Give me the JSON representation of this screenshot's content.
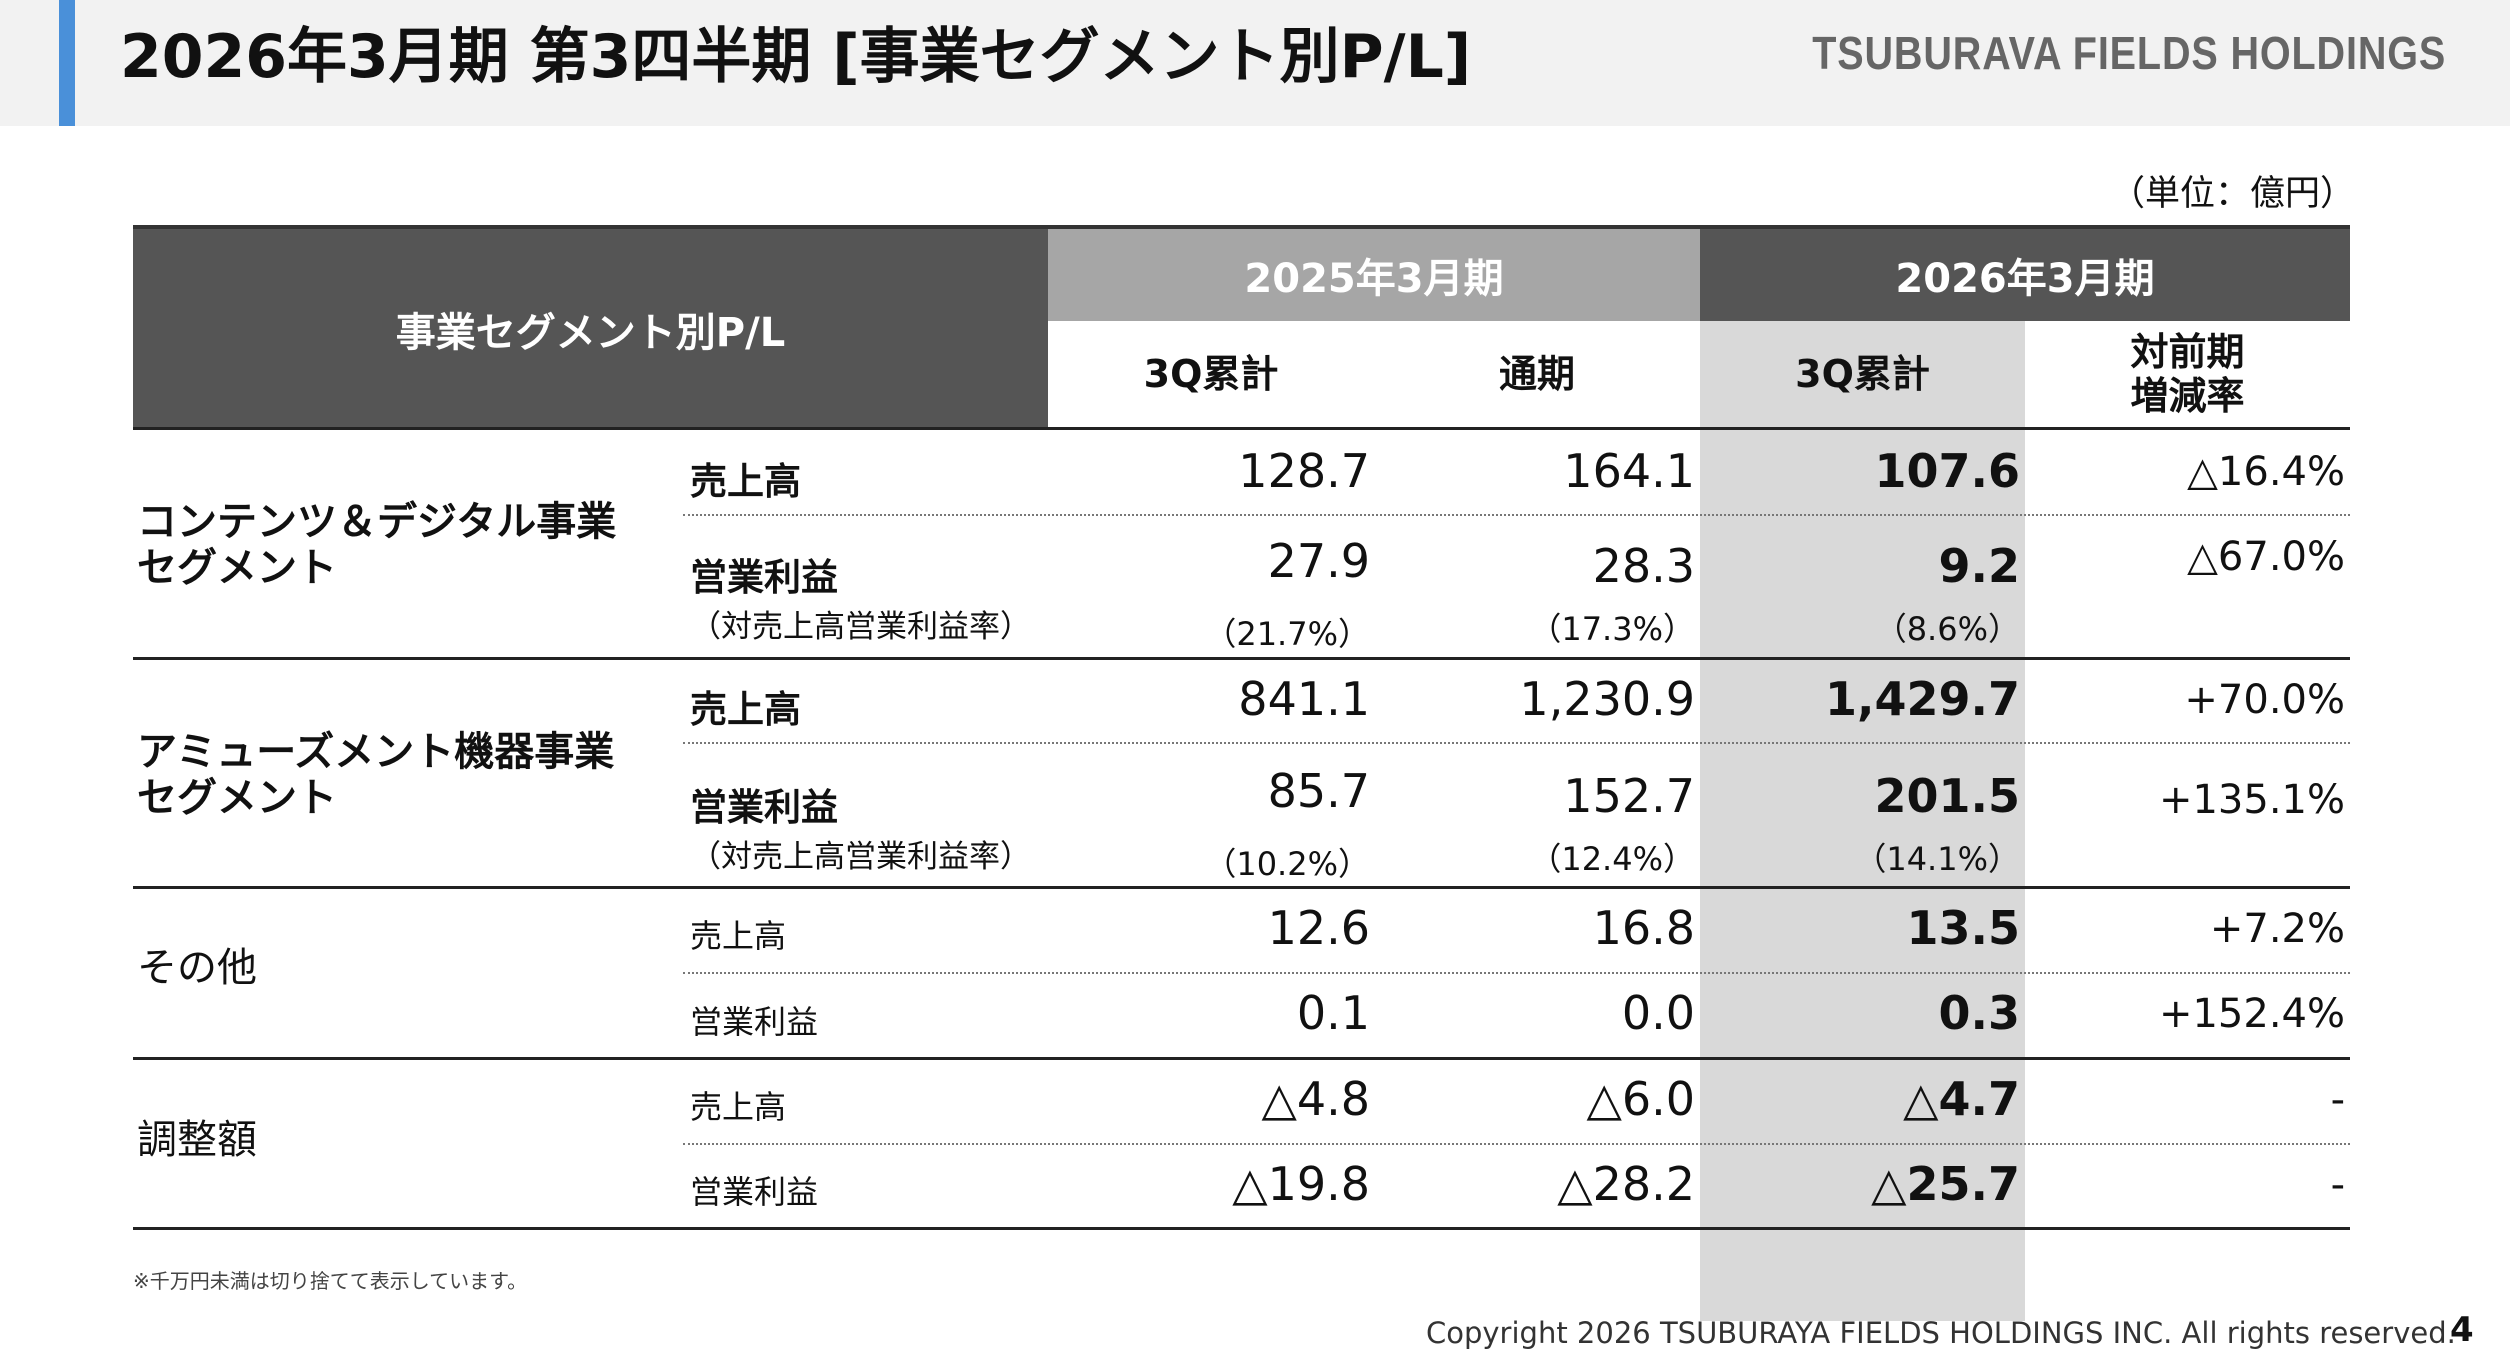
{
  "header": {
    "title": "2026年3月期 第3四半期 [事業セグメント別P/L]",
    "company": "TSUBURAVA FIELDS HOLDINGS"
  },
  "unit": "（単位：億円）",
  "table": {
    "header_main": "事業セグメント別P/L",
    "period_2025": "2025年3月期",
    "period_2026": "2026年3月期",
    "col_3q_2025": "3Q累計",
    "col_full_2025": "通期",
    "col_3q_2026": "3Q累計",
    "col_change": "対前期\n増減率",
    "segments": [
      {
        "name": "コンテンツ＆デジタル事業\nセグメント",
        "rows": [
          {
            "label": "売上高",
            "v1": "128.7",
            "v2": "164.1",
            "v3": "107.6",
            "chg": "△16.4%"
          },
          {
            "label": "営業利益",
            "ratio_label": "（対売上高営業利益率）",
            "v1": "27.9",
            "v2": "28.3",
            "v3": "9.2",
            "chg": "△67.0%",
            "r1": "（21.7%）",
            "r2": "（17.3%）",
            "r3": "（8.6%）"
          }
        ]
      },
      {
        "name": "アミューズメント機器事業\nセグメント",
        "rows": [
          {
            "label": "売上高",
            "v1": "841.1",
            "v2": "1,230.9",
            "v3": "1,429.7",
            "chg": "+70.0%"
          },
          {
            "label": "営業利益",
            "ratio_label": "（対売上高営業利益率）",
            "v1": "85.7",
            "v2": "152.7",
            "v3": "201.5",
            "chg": "+135.1%",
            "r1": "（10.2%）",
            "r2": "（12.4%）",
            "r3": "（14.1%）"
          }
        ]
      },
      {
        "name": "その他",
        "rows": [
          {
            "label": "売上高",
            "v1": "12.6",
            "v2": "16.8",
            "v3": "13.5",
            "chg": "+7.2%"
          },
          {
            "label": "営業利益",
            "v1": "0.1",
            "v2": "0.0",
            "v3": "0.3",
            "chg": "+152.4%"
          }
        ]
      },
      {
        "name": "調整額",
        "rows": [
          {
            "label": "売上高",
            "v1": "△4.8",
            "v2": "△6.0",
            "v3": "△4.7",
            "chg": "-"
          },
          {
            "label": "営業利益",
            "v1": "△19.8",
            "v2": "△28.2",
            "v3": "△25.7",
            "chg": "-"
          }
        ]
      }
    ]
  },
  "footnote": "※千万円未満は切り捨てて表示しています。",
  "copyright": "Copyright 2026 TSUBURAYA FIELDS HOLDINGS INC. All rights reserved.",
  "page_number": "4"
}
